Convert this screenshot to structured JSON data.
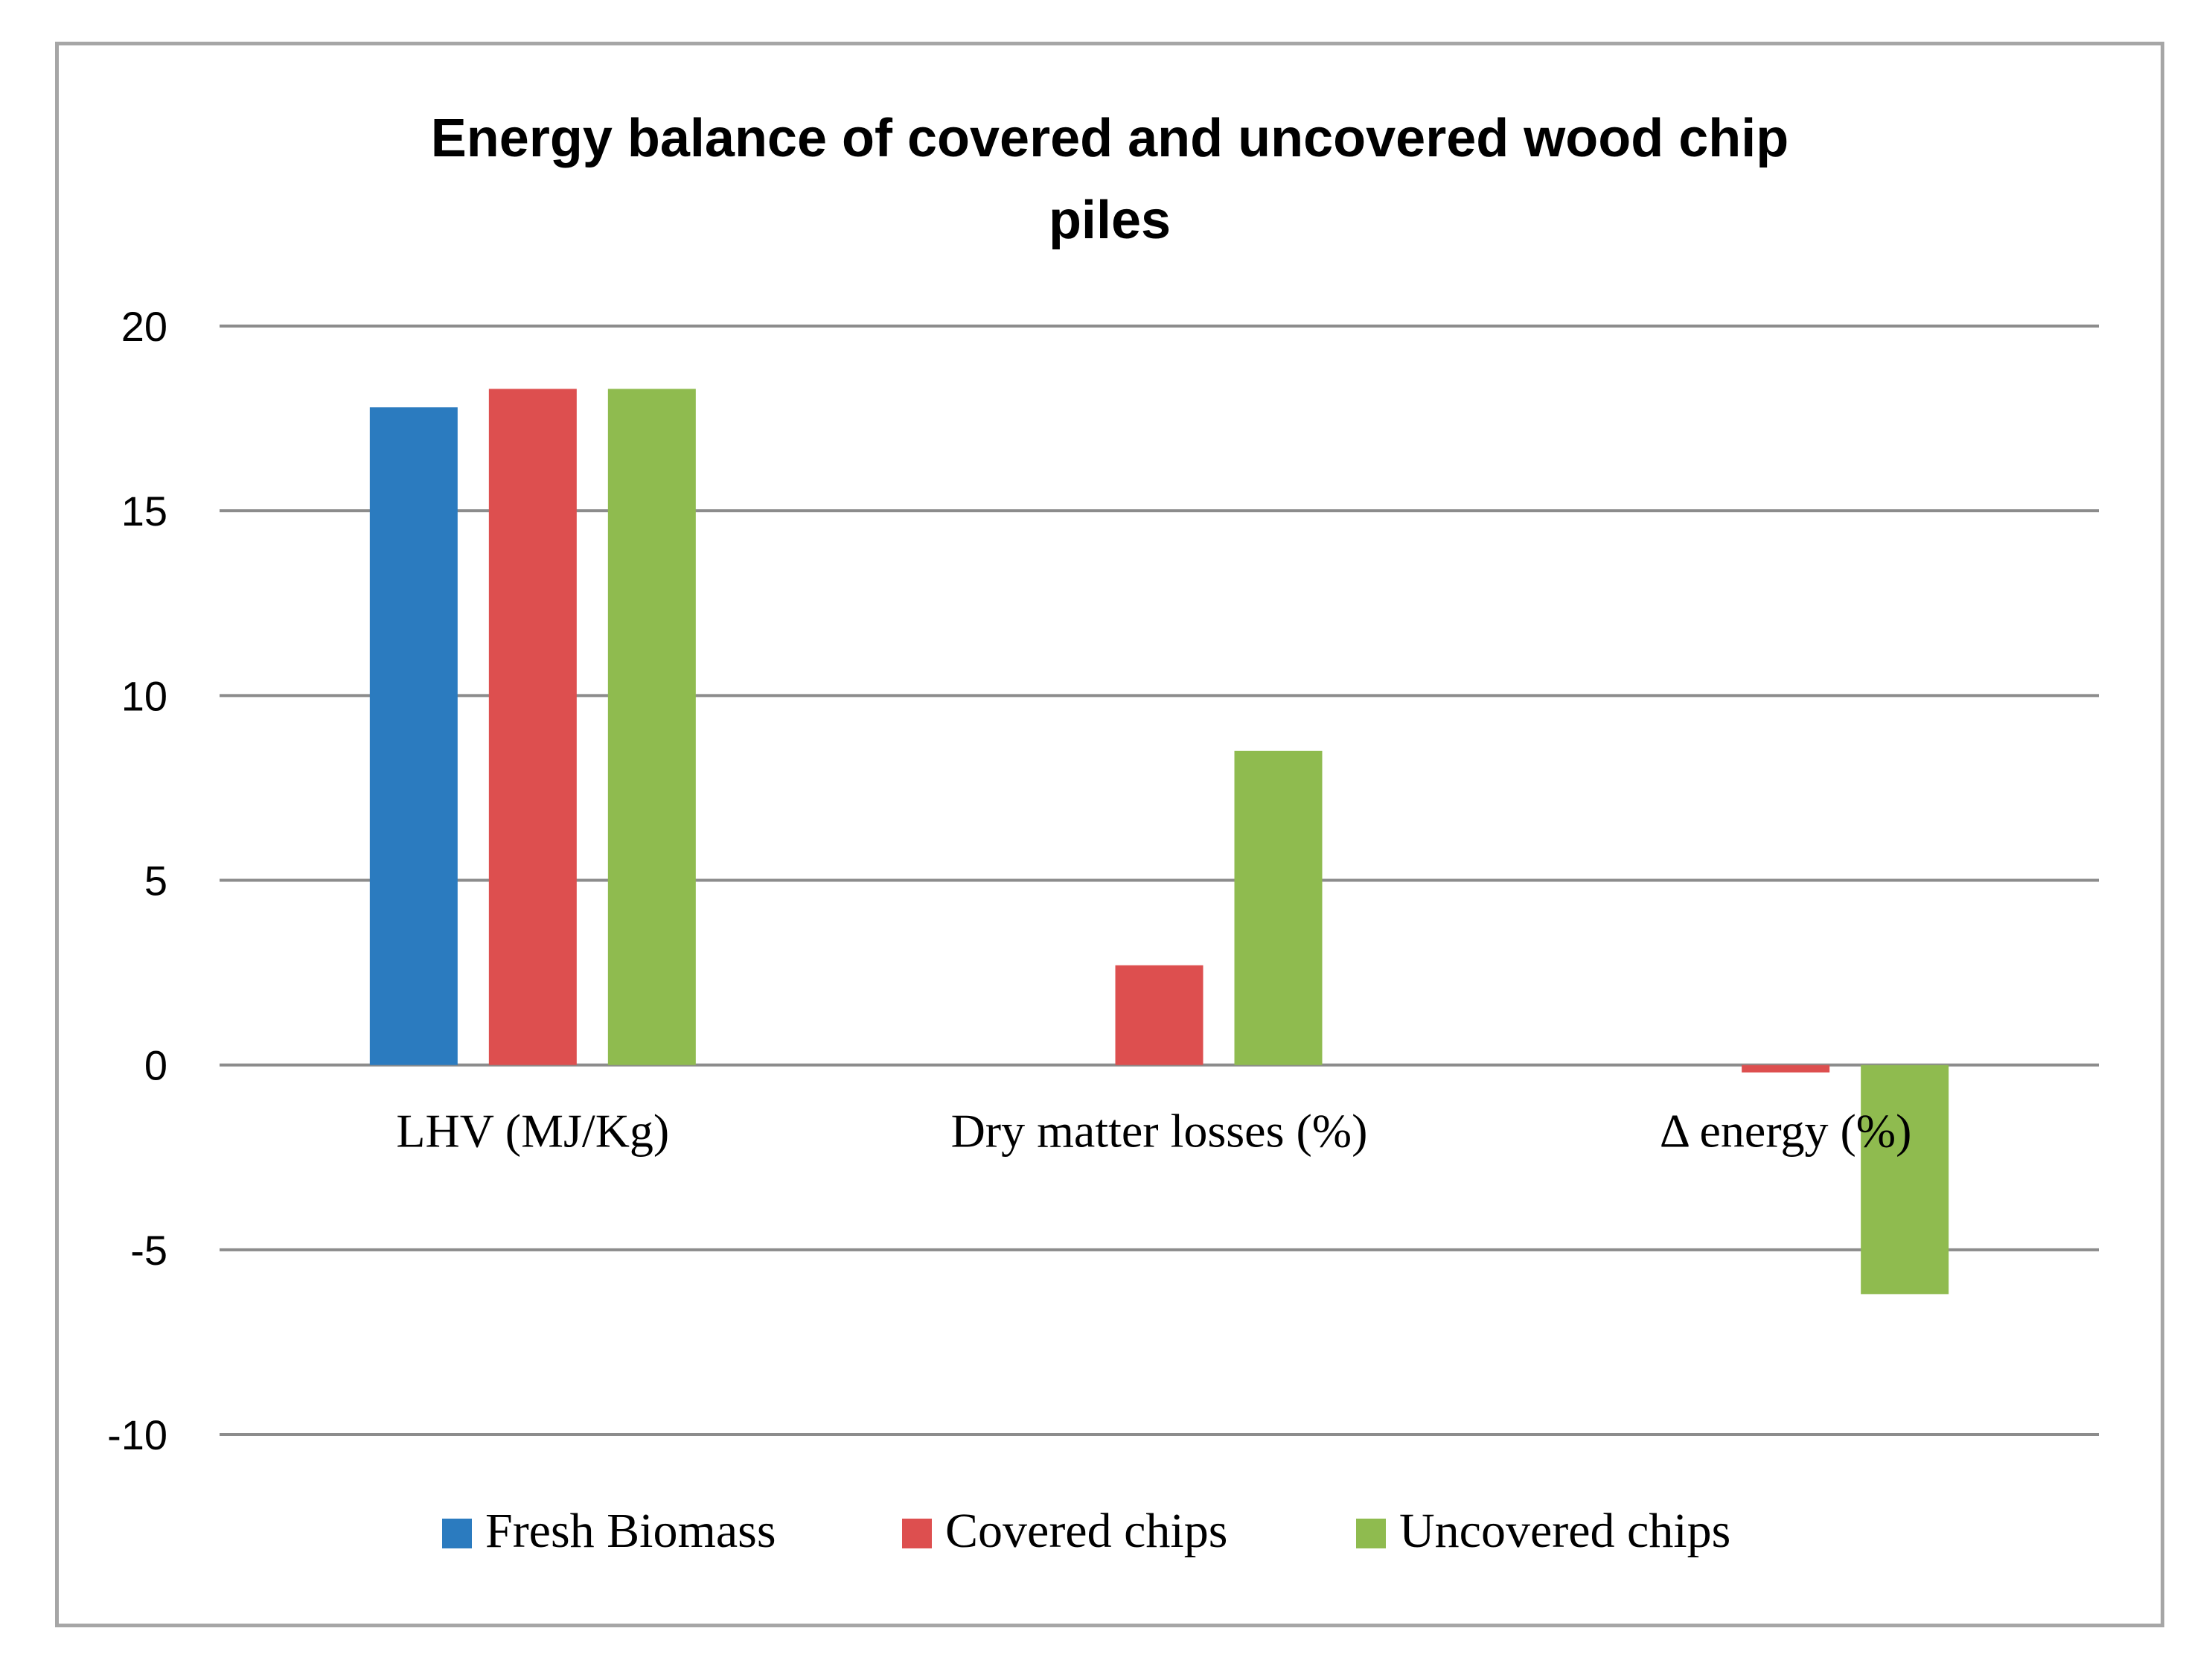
{
  "chart_data": {
    "type": "bar",
    "title": "Energy balance of covered and uncovered wood chip piles",
    "title_lines": [
      "Energy balance of covered and uncovered wood chip",
      "piles"
    ],
    "categories": [
      "LHV (MJ/Kg)",
      "Dry matter losses (%)",
      "Δ energy (%)"
    ],
    "series": [
      {
        "name": "Fresh Biomass",
        "color": "#2b7bbf",
        "values": [
          17.8,
          null,
          null
        ]
      },
      {
        "name": "Covered chips",
        "color": "#dd4f4f",
        "values": [
          18.3,
          2.7,
          -0.2
        ]
      },
      {
        "name": "Uncovered chips",
        "color": "#8fbb4f",
        "values": [
          18.3,
          8.5,
          -6.2
        ]
      }
    ],
    "ylim": [
      -10,
      20
    ],
    "yticks": [
      20,
      15,
      10,
      5,
      0,
      -5,
      -10
    ],
    "xlabel": "",
    "ylabel": "",
    "grid": true,
    "legend_position": "bottom"
  }
}
